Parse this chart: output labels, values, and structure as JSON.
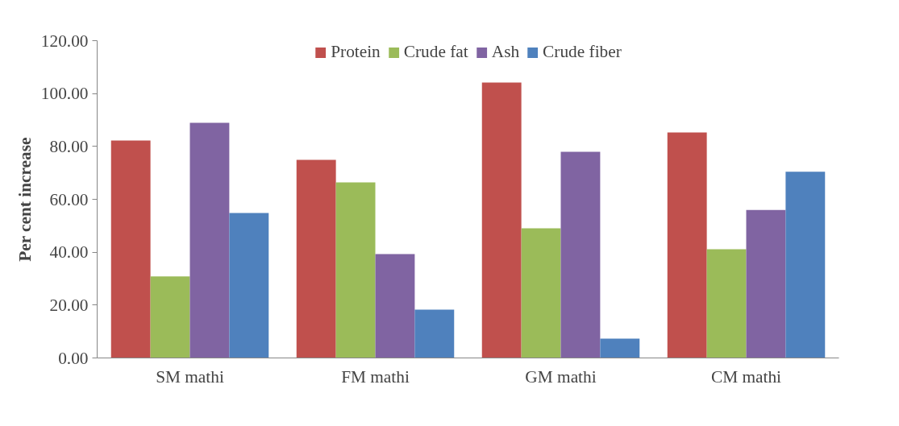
{
  "chart_data": {
    "type": "bar",
    "ylabel": "Per cent increase",
    "categories": [
      "SM mathi",
      "FM mathi",
      "GM mathi",
      "CM mathi"
    ],
    "series": [
      {
        "name": "Protein",
        "color": "#c0504d",
        "values": [
          82.2,
          74.9,
          104.2,
          85.3
        ]
      },
      {
        "name": "Crude fat",
        "color": "#9bbb59",
        "values": [
          30.8,
          66.4,
          49.0,
          41.1
        ]
      },
      {
        "name": "Ash",
        "color": "#8064a2",
        "values": [
          88.9,
          39.3,
          78.0,
          56.0
        ]
      },
      {
        "name": "Crude fiber",
        "color": "#4f81bd",
        "values": [
          54.8,
          18.3,
          7.3,
          70.4
        ]
      }
    ],
    "ylim": [
      0,
      120
    ],
    "yticks": [
      {
        "value": 0,
        "label": "0.00"
      },
      {
        "value": 20,
        "label": "20.00"
      },
      {
        "value": 40,
        "label": "40.00"
      },
      {
        "value": 60,
        "label": "60.00"
      },
      {
        "value": 80,
        "label": "80.00"
      },
      {
        "value": 100,
        "label": "100.00"
      },
      {
        "value": 120,
        "label": "120.00"
      }
    ],
    "grid": false,
    "legend": "top"
  }
}
